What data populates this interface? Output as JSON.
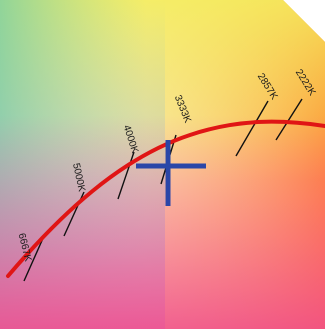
{
  "diagram": {
    "kind": "cie-chromaticity-detail-with-planckian-locus",
    "locus_color": "#e01515",
    "isotherm_color": "#111111",
    "crosshair_color": "#2a46a8",
    "cct_labels": [
      "6667K",
      "5000K",
      "4000K",
      "3333K",
      "2857K",
      "2222K"
    ]
  }
}
